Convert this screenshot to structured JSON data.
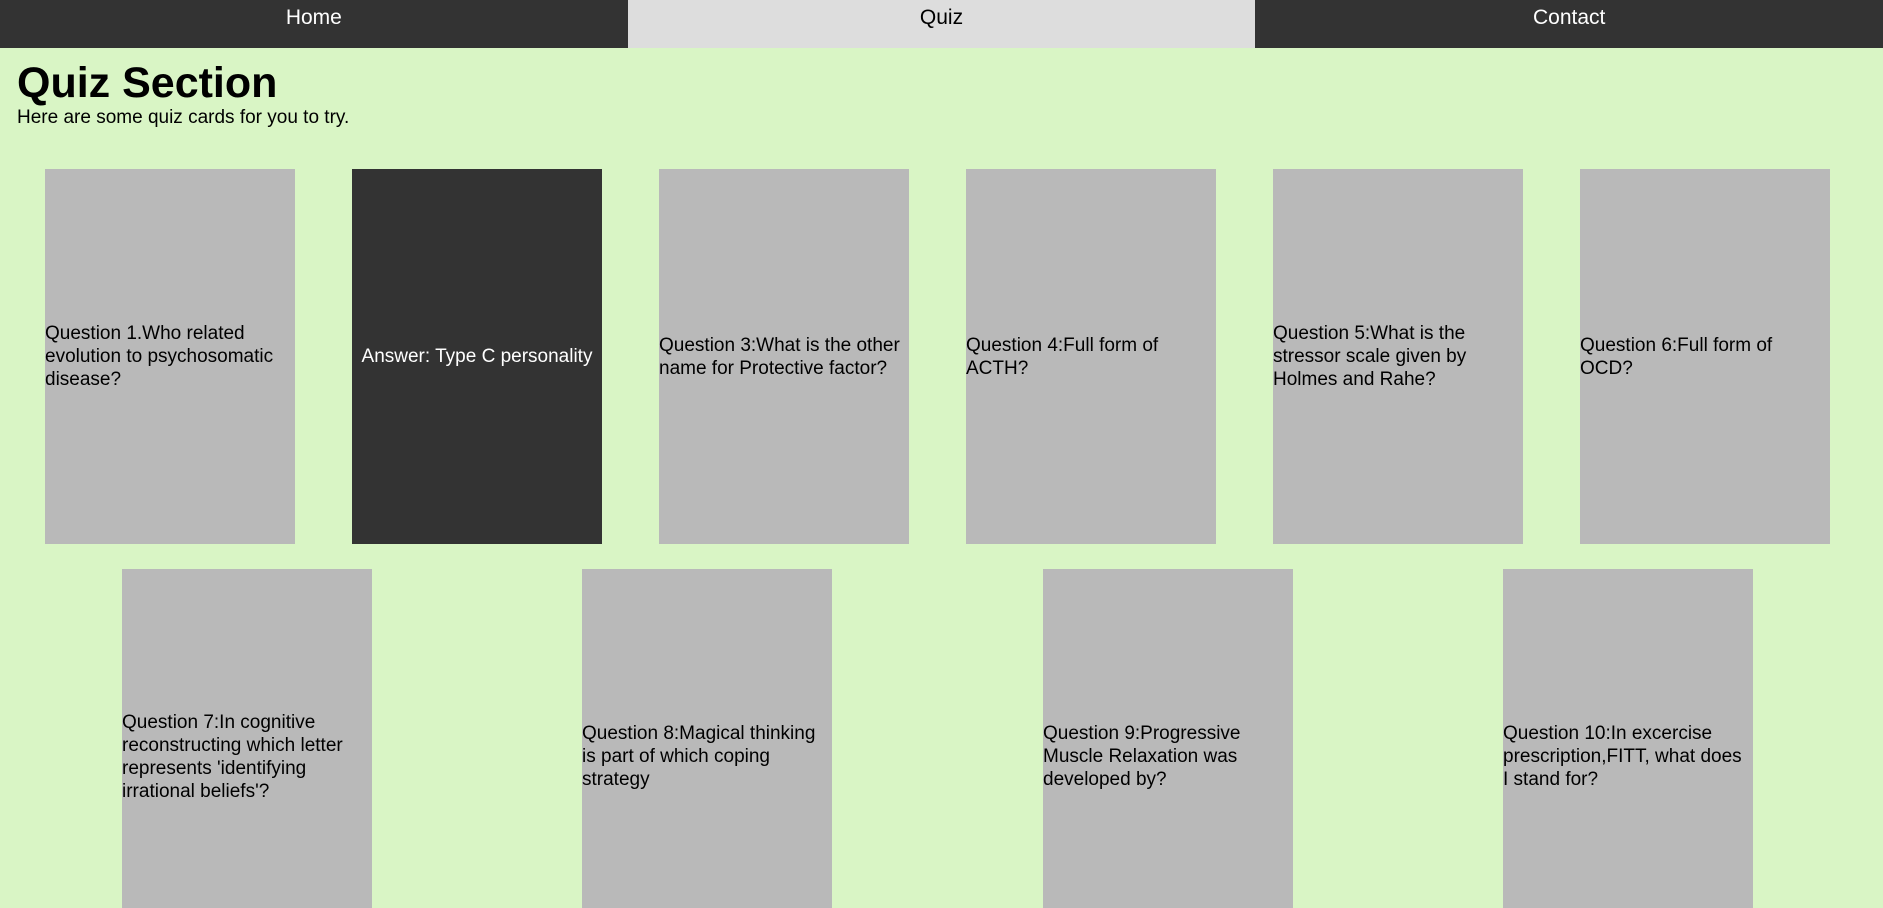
{
  "nav": {
    "items": [
      {
        "label": "Home"
      },
      {
        "label": "Quiz"
      },
      {
        "label": "Contact"
      }
    ]
  },
  "header": {
    "title": "Quiz Section",
    "subtitle": "Here are some quiz cards for you to try."
  },
  "cards": [
    {
      "text": "Question 1.Who related evolution to psychosomatic disease?"
    },
    {
      "text": "Answer: Type C personality"
    },
    {
      "text": "Question 3:What is the other name for Protective factor?"
    },
    {
      "text": "Question 4:Full form of ACTH?"
    },
    {
      "text": "Question 5:What is the stressor scale given by Holmes and Rahe?"
    },
    {
      "text": "Question 6:Full form of OCD?"
    },
    {
      "text": "Question 7:In cognitive reconstructing which letter represents 'identifying irrational beliefs'?"
    },
    {
      "text": "Question 8:Magical thinking is part of which coping strategy"
    },
    {
      "text": "Question 9:Progressive Muscle Relaxation was developed by?"
    },
    {
      "text": "Question 10:In excercise prescription,FITT, what does I stand for?"
    }
  ],
  "colors": {
    "page_background": "#d9f5c5",
    "nav_background": "#333333",
    "nav_active": "#dddddd",
    "card_background": "#b9b9b9",
    "card_flipped": "#333333"
  }
}
